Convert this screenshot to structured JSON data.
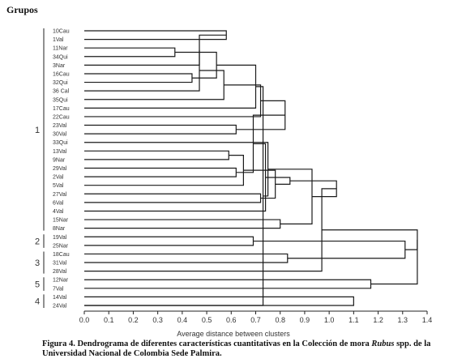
{
  "chart_data": {
    "type": "dendrogram",
    "title": "Grupos",
    "xlabel": "Average distance between clusters",
    "xlim": [
      0,
      1.4
    ],
    "xticks": [
      "0.0",
      "0.1",
      "0.2",
      "0.3",
      "0.4",
      "0.5",
      "0.6",
      "0.7",
      "0.8",
      "0.9",
      "1.0",
      "1.1",
      "1.2",
      "1.3",
      "1.4"
    ],
    "leaves": [
      "10Cau",
      "1Val",
      "11Nar",
      "34Qui",
      "3Nar",
      "16Cau",
      "32Qui",
      "36 Cal",
      "35Qui",
      "17Cau",
      "22Cau",
      "23Val",
      "30Val",
      "33Qui",
      "13Val",
      "9Nar",
      "29Val",
      "2Val",
      "5Val",
      "27Val",
      "6Val",
      "4Val",
      "15Nar",
      "8Nar",
      "19Val",
      "25Nar",
      "18Cau",
      "31Val",
      "28Val",
      "12Nar",
      "7Val",
      "14Val",
      "24Val"
    ],
    "groups": [
      {
        "label": "1",
        "from": "10Cau",
        "to": "8Nar"
      },
      {
        "label": "2",
        "from": "19Val",
        "to": "25Nar"
      },
      {
        "label": "3",
        "from": "18Cau",
        "to": "28Val"
      },
      {
        "label": "5",
        "from": "12Nar",
        "to": "7Val"
      },
      {
        "label": "4",
        "from": "14Val",
        "to": "24Val"
      }
    ],
    "merges": [
      {
        "a": 0,
        "b": 1,
        "h": 0.58
      },
      {
        "a": 2,
        "b": 3,
        "h": 0.37
      },
      {
        "a": 33,
        "b": 4,
        "h": 0.47
      },
      {
        "a": 5,
        "b": 6,
        "h": 0.44
      },
      {
        "a": 35,
        "b": 7,
        "h": 0.47
      },
      {
        "a": 34,
        "b": 36,
        "h": 0.54
      },
      {
        "a": 37,
        "b": 8,
        "h": 0.57
      },
      {
        "a": 38,
        "b": 9,
        "h": 0.7
      },
      {
        "a": 39,
        "b": 10,
        "h": 0.72
      },
      {
        "a": 32,
        "b": 40,
        "h": 0.73
      },
      {
        "a": 11,
        "b": 12,
        "h": 0.62
      },
      {
        "a": 42,
        "b": 13,
        "h": 0.75
      },
      {
        "a": 41,
        "b": 43,
        "h": 0.82
      },
      {
        "a": 14,
        "b": 15,
        "h": 0.59
      },
      {
        "a": 16,
        "b": 17,
        "h": 0.62
      },
      {
        "a": 46,
        "b": 18,
        "h": 0.65
      },
      {
        "a": 45,
        "b": 47,
        "h": 0.69
      },
      {
        "a": 19,
        "b": 20,
        "h": 0.72
      },
      {
        "a": 49,
        "b": 21,
        "h": 0.74
      },
      {
        "a": 48,
        "b": 50,
        "h": 0.78
      },
      {
        "a": 22,
        "b": 23,
        "h": 0.8
      },
      {
        "a": 51,
        "b": 52,
        "h": 0.84
      },
      {
        "a": 44,
        "b": 53,
        "h": 0.93
      },
      {
        "a": 24,
        "b": 25,
        "h": 0.69
      },
      {
        "a": 54,
        "b": 55,
        "h": 1.03
      },
      {
        "a": 26,
        "b": 27,
        "h": 0.83
      },
      {
        "a": 57,
        "b": 28,
        "h": 0.97
      },
      {
        "a": 56,
        "b": 58,
        "h": 1.31
      },
      {
        "a": 29,
        "b": 30,
        "h": 1.17
      },
      {
        "a": 59,
        "b": 60,
        "h": 1.36
      },
      {
        "a": 31,
        "b": 32,
        "h": 1.1
      },
      {
        "a": 61,
        "b": 62,
        "h": 1.36
      }
    ]
  },
  "caption": {
    "prefix": "Figura 4. Dendrograma de diferentes características cuantitativas en la Colección de mora ",
    "italic": "Rubus",
    "suffix": " spp. de la Universidad Nacional de Colombia Sede Palmira."
  }
}
